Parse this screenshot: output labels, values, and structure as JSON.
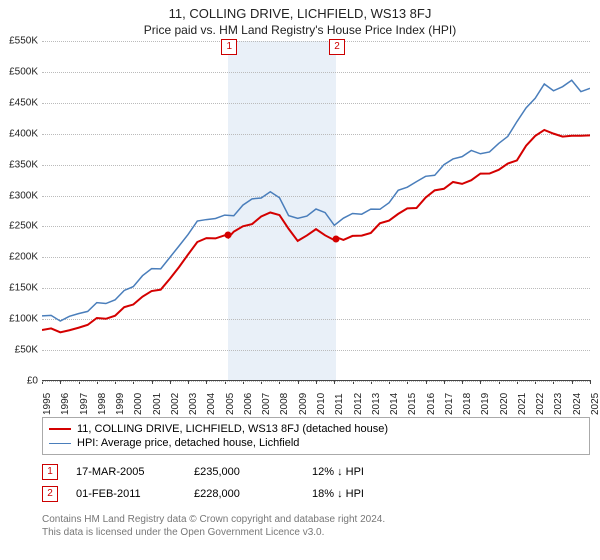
{
  "title": "11, COLLING DRIVE, LICHFIELD, WS13 8FJ",
  "subtitle": "Price paid vs. HM Land Registry's House Price Index (HPI)",
  "chart": {
    "type": "line",
    "ylabel_prefix": "£",
    "ylabel_suffix": "K",
    "ylim": [
      0,
      550
    ],
    "ytick_step": 50,
    "xlim": [
      1995,
      2025
    ],
    "xtick_step": 1,
    "grid_color": "#bbbbbb",
    "background_color": "#ffffff",
    "band_color": "rgba(70,130,200,0.12)",
    "band_range": [
      2005.2,
      2011.1
    ],
    "series": [
      {
        "id": "price_paid",
        "label": "11, COLLING DRIVE, LICHFIELD, WS13 8FJ (detached house)",
        "color": "#d40000",
        "line_width": 2,
        "values": [
          [
            1995.0,
            78
          ],
          [
            1995.5,
            80
          ],
          [
            1996.0,
            82
          ],
          [
            1996.5,
            82
          ],
          [
            1997.0,
            85
          ],
          [
            1997.5,
            90
          ],
          [
            1998.0,
            95
          ],
          [
            1998.5,
            100
          ],
          [
            1999.0,
            108
          ],
          [
            1999.5,
            118
          ],
          [
            2000.0,
            125
          ],
          [
            2000.5,
            132
          ],
          [
            2001.0,
            140
          ],
          [
            2001.5,
            150
          ],
          [
            2002.0,
            165
          ],
          [
            2002.5,
            185
          ],
          [
            2003.0,
            205
          ],
          [
            2003.5,
            218
          ],
          [
            2004.0,
            230
          ],
          [
            2004.5,
            232
          ],
          [
            2005.0,
            235
          ],
          [
            2005.2,
            235
          ],
          [
            2005.5,
            238
          ],
          [
            2006.0,
            245
          ],
          [
            2006.5,
            255
          ],
          [
            2007.0,
            265
          ],
          [
            2007.5,
            275
          ],
          [
            2008.0,
            270
          ],
          [
            2008.5,
            240
          ],
          [
            2009.0,
            225
          ],
          [
            2009.5,
            235
          ],
          [
            2010.0,
            245
          ],
          [
            2010.5,
            240
          ],
          [
            2011.0,
            225
          ],
          [
            2011.1,
            228
          ],
          [
            2011.5,
            228
          ],
          [
            2012.0,
            232
          ],
          [
            2012.5,
            238
          ],
          [
            2013.0,
            242
          ],
          [
            2013.5,
            250
          ],
          [
            2014.0,
            258
          ],
          [
            2014.5,
            268
          ],
          [
            2015.0,
            278
          ],
          [
            2015.5,
            285
          ],
          [
            2016.0,
            295
          ],
          [
            2016.5,
            305
          ],
          [
            2017.0,
            310
          ],
          [
            2017.5,
            318
          ],
          [
            2018.0,
            322
          ],
          [
            2018.5,
            328
          ],
          [
            2019.0,
            332
          ],
          [
            2019.5,
            335
          ],
          [
            2020.0,
            338
          ],
          [
            2020.5,
            350
          ],
          [
            2021.0,
            362
          ],
          [
            2021.5,
            380
          ],
          [
            2022.0,
            395
          ],
          [
            2022.5,
            405
          ],
          [
            2023.0,
            395
          ],
          [
            2023.5,
            398
          ],
          [
            2024.0,
            400
          ],
          [
            2024.5,
            395
          ],
          [
            2025.0,
            398
          ]
        ]
      },
      {
        "id": "hpi",
        "label": "HPI: Average price, detached house, Lichfield",
        "color": "#4a7ebb",
        "line_width": 1.5,
        "values": [
          [
            1995.0,
            100
          ],
          [
            1995.5,
            100
          ],
          [
            1996.0,
            102
          ],
          [
            1996.5,
            105
          ],
          [
            1997.0,
            108
          ],
          [
            1997.5,
            112
          ],
          [
            1998.0,
            118
          ],
          [
            1998.5,
            125
          ],
          [
            1999.0,
            135
          ],
          [
            1999.5,
            145
          ],
          [
            2000.0,
            155
          ],
          [
            2000.5,
            165
          ],
          [
            2001.0,
            175
          ],
          [
            2001.5,
            185
          ],
          [
            2002.0,
            200
          ],
          [
            2002.5,
            220
          ],
          [
            2003.0,
            238
          ],
          [
            2003.5,
            250
          ],
          [
            2004.0,
            260
          ],
          [
            2004.5,
            265
          ],
          [
            2005.0,
            268
          ],
          [
            2005.5,
            272
          ],
          [
            2006.0,
            280
          ],
          [
            2006.5,
            288
          ],
          [
            2007.0,
            298
          ],
          [
            2007.5,
            305
          ],
          [
            2008.0,
            300
          ],
          [
            2008.5,
            270
          ],
          [
            2009.0,
            255
          ],
          [
            2009.5,
            265
          ],
          [
            2010.0,
            278
          ],
          [
            2010.5,
            272
          ],
          [
            2011.0,
            258
          ],
          [
            2011.5,
            260
          ],
          [
            2012.0,
            265
          ],
          [
            2012.5,
            270
          ],
          [
            2013.0,
            275
          ],
          [
            2013.5,
            282
          ],
          [
            2014.0,
            292
          ],
          [
            2014.5,
            302
          ],
          [
            2015.0,
            312
          ],
          [
            2015.5,
            320
          ],
          [
            2016.0,
            330
          ],
          [
            2016.5,
            340
          ],
          [
            2017.0,
            348
          ],
          [
            2017.5,
            355
          ],
          [
            2018.0,
            362
          ],
          [
            2018.5,
            368
          ],
          [
            2019.0,
            372
          ],
          [
            2019.5,
            375
          ],
          [
            2020.0,
            380
          ],
          [
            2020.5,
            395
          ],
          [
            2021.0,
            415
          ],
          [
            2021.5,
            440
          ],
          [
            2022.0,
            465
          ],
          [
            2022.5,
            480
          ],
          [
            2023.0,
            468
          ],
          [
            2023.5,
            475
          ],
          [
            2024.0,
            480
          ],
          [
            2024.5,
            472
          ],
          [
            2025.0,
            478
          ]
        ]
      }
    ],
    "sale_markers": [
      {
        "num": "1",
        "x": 2005.2,
        "y": 235
      },
      {
        "num": "2",
        "x": 2011.1,
        "y": 228
      }
    ]
  },
  "legend": {
    "items": [
      {
        "label": "11, COLLING DRIVE, LICHFIELD, WS13 8FJ (detached house)",
        "color": "#d40000",
        "width": 2
      },
      {
        "label": "HPI: Average price, detached house, Lichfield",
        "color": "#4a7ebb",
        "width": 1.5
      }
    ]
  },
  "sales": [
    {
      "num": "1",
      "date": "17-MAR-2005",
      "price": "£235,000",
      "delta": "12% ↓ HPI"
    },
    {
      "num": "2",
      "date": "01-FEB-2011",
      "price": "£228,000",
      "delta": "18% ↓ HPI"
    }
  ],
  "footer": {
    "line1": "Contains HM Land Registry data © Crown copyright and database right 2024.",
    "line2": "This data is licensed under the Open Government Licence v3.0."
  }
}
